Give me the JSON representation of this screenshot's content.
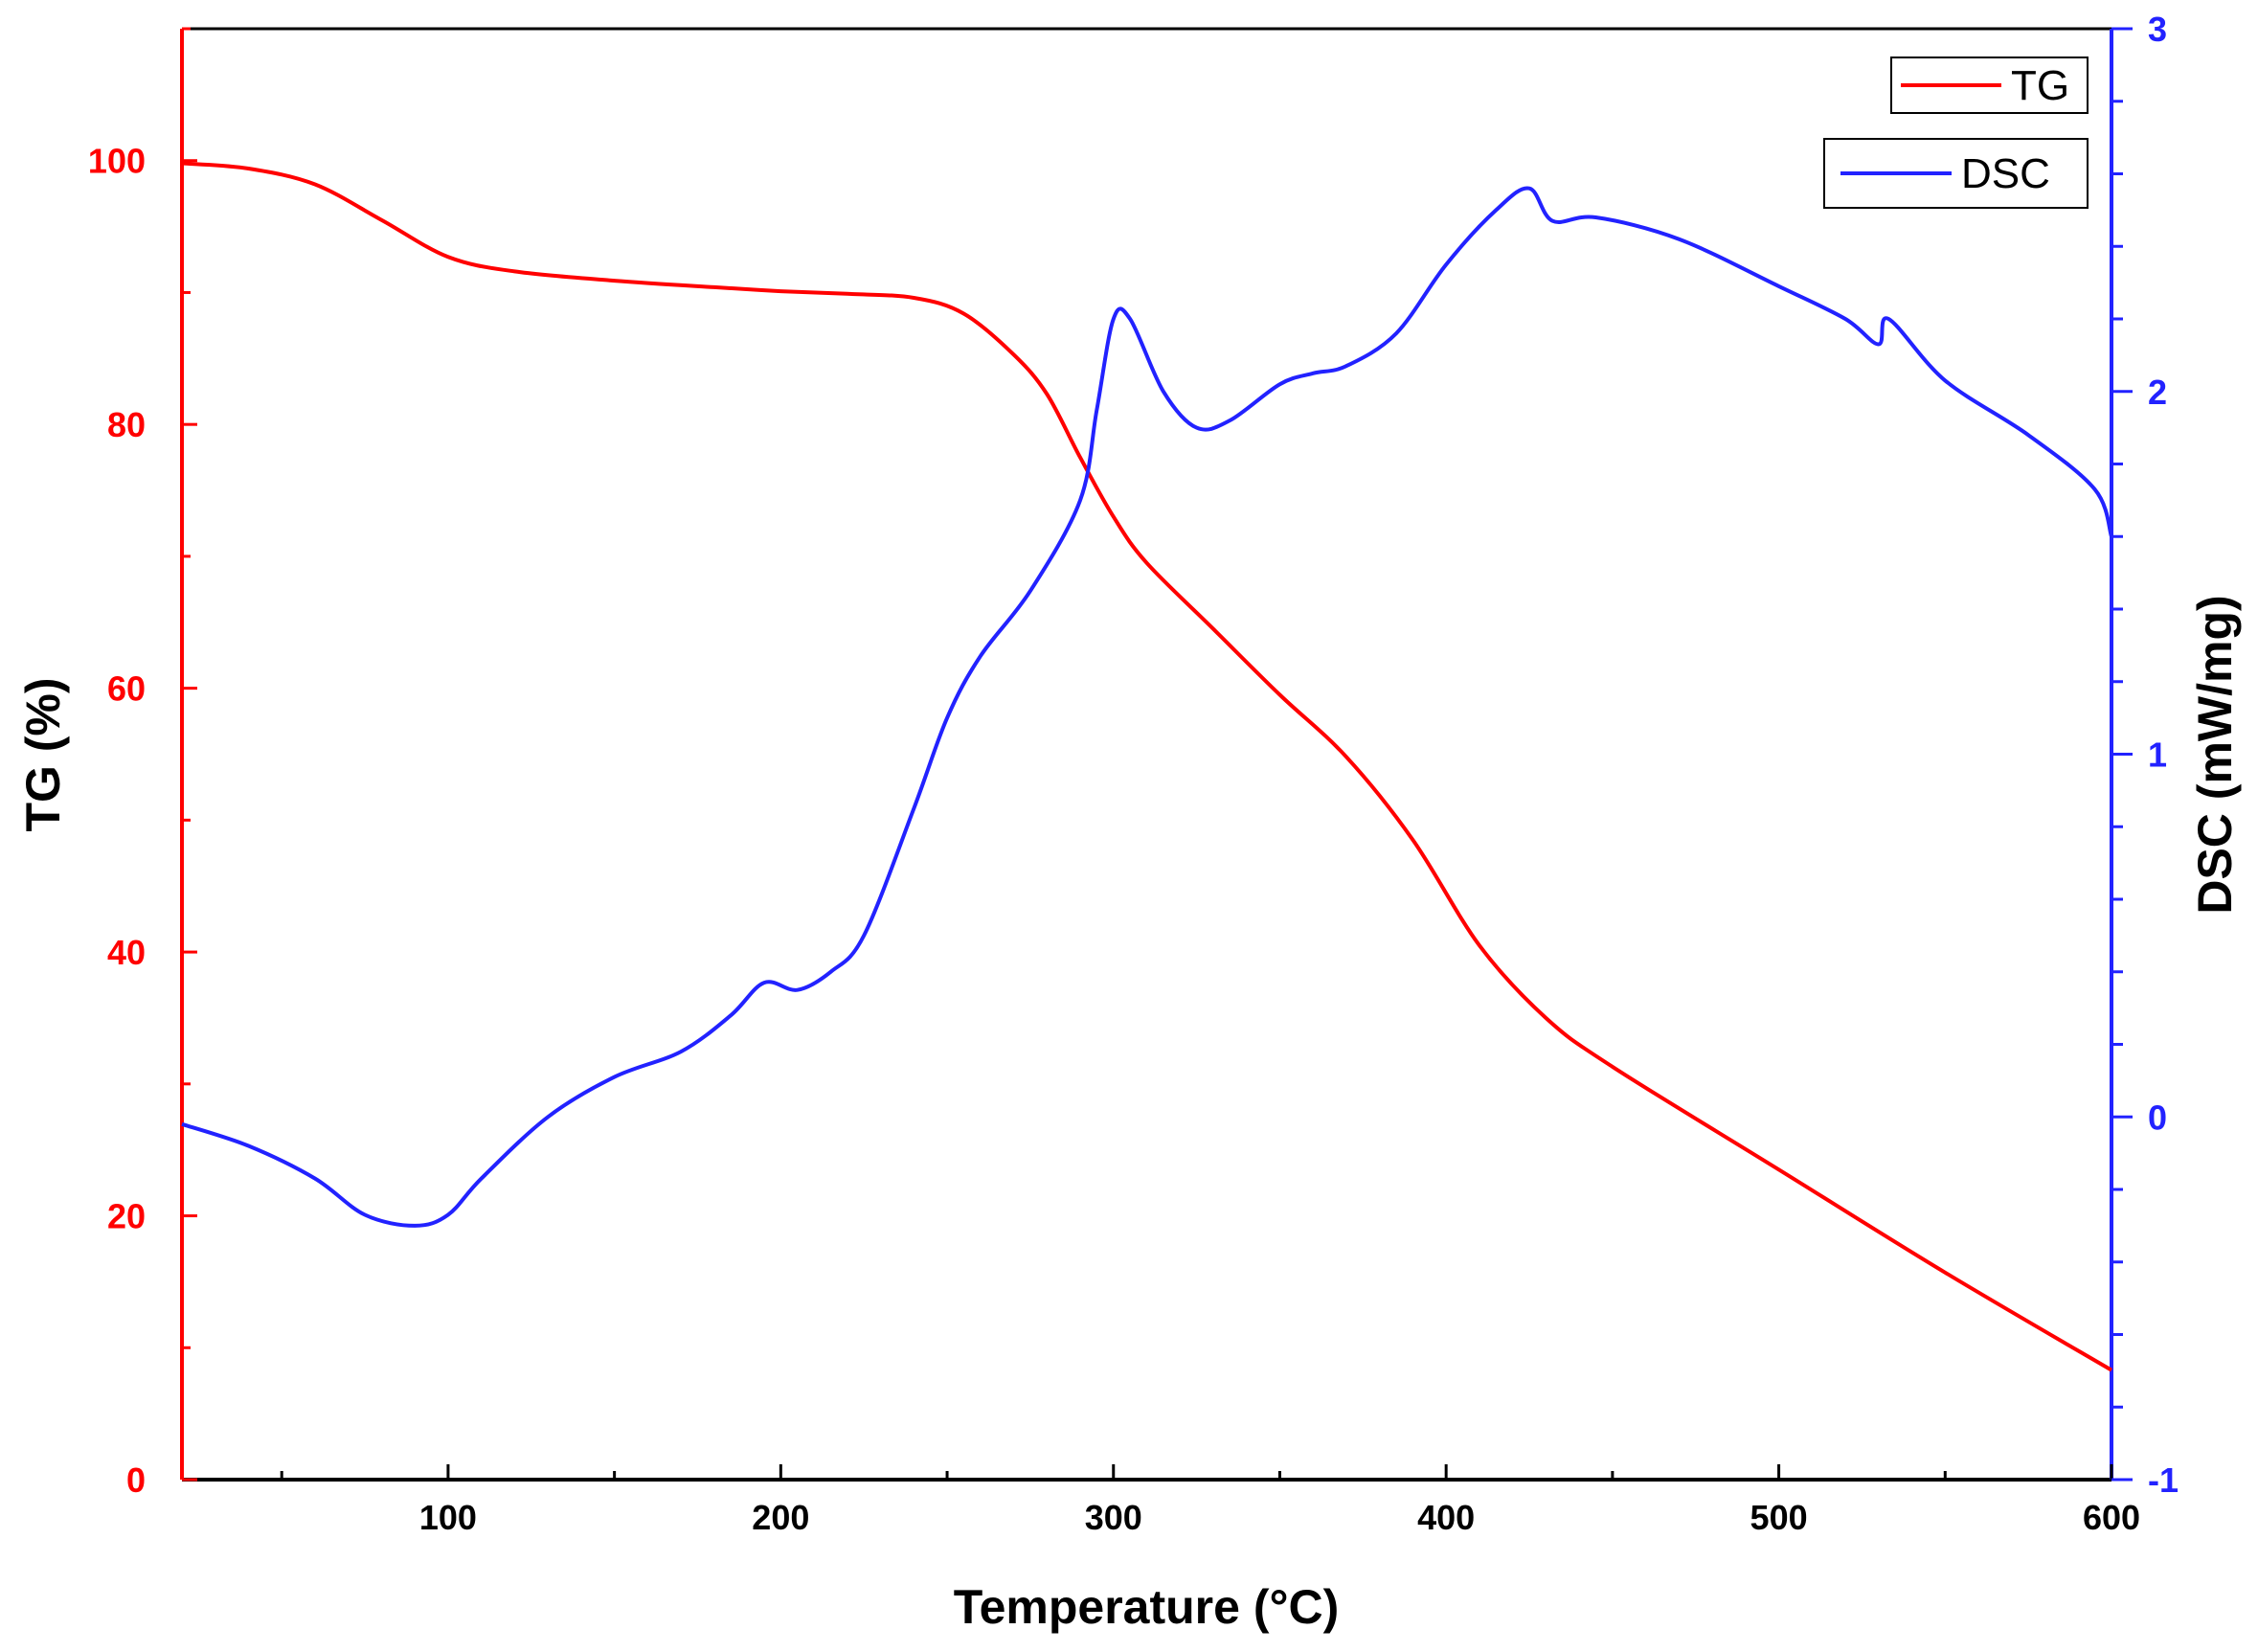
{
  "chart_data": {
    "type": "line",
    "title": "",
    "xlabel": "Temperature (°C)",
    "xlim": [
      20,
      600
    ],
    "x_ticks": [
      100,
      200,
      300,
      400,
      500,
      600
    ],
    "x_tick_labels": [
      "100",
      "200",
      "300",
      "400",
      "500",
      "600"
    ],
    "y_left": {
      "label": "TG (%)",
      "lim": [
        0,
        110
      ],
      "ticks": [
        0,
        20,
        40,
        60,
        80,
        100
      ],
      "tick_labels": [
        "0",
        "20",
        "40",
        "60",
        "80",
        "100"
      ],
      "color": "#ff0000"
    },
    "y_right": {
      "label": "DSC (mW/mg)",
      "lim": [
        -1,
        3
      ],
      "ticks": [
        -1,
        0,
        1,
        2,
        3
      ],
      "tick_labels": [
        "-1",
        "0",
        "1",
        "2",
        "3"
      ],
      "color": "#2222ff"
    },
    "grid": false,
    "legend_position": "top-right",
    "series": [
      {
        "name": "TG",
        "axis": "left",
        "color": "#ff0000",
        "x": [
          20,
          40,
          60,
          80,
          100,
          120,
          150,
          180,
          200,
          220,
          240,
          255,
          270,
          280,
          290,
          300,
          310,
          330,
          350,
          370,
          390,
          410,
          430,
          450,
          500,
          550,
          600
        ],
        "y": [
          99.8,
          99.4,
          98.2,
          95.5,
          92.7,
          91.6,
          90.9,
          90.4,
          90.1,
          89.9,
          89.6,
          88.4,
          85.3,
          82.3,
          77.5,
          73.0,
          69.5,
          64.5,
          59.5,
          54.8,
          48.5,
          40.5,
          35.0,
          31.3,
          23.5,
          15.7,
          8.3
        ]
      },
      {
        "name": "DSC",
        "axis": "right",
        "color": "#2222ff",
        "x": [
          20,
          40,
          60,
          75,
          90,
          100,
          110,
          130,
          150,
          170,
          185,
          195,
          205,
          215,
          225,
          240,
          250,
          260,
          275,
          290,
          295,
          300,
          305,
          315,
          325,
          335,
          350,
          360,
          370,
          385,
          400,
          415,
          425,
          432,
          445,
          470,
          500,
          520,
          530,
          533,
          550,
          575,
          595,
          600
        ],
        "y": [
          -0.02,
          -0.08,
          -0.17,
          -0.27,
          -0.3,
          -0.27,
          -0.17,
          0.0,
          0.11,
          0.18,
          0.28,
          0.37,
          0.35,
          0.4,
          0.5,
          0.85,
          1.1,
          1.27,
          1.45,
          1.7,
          1.95,
          2.2,
          2.2,
          2.0,
          1.9,
          1.92,
          2.02,
          2.05,
          2.07,
          2.16,
          2.35,
          2.5,
          2.56,
          2.47,
          2.48,
          2.42,
          2.29,
          2.2,
          2.13,
          2.2,
          2.03,
          1.88,
          1.73,
          1.6
        ]
      }
    ]
  }
}
